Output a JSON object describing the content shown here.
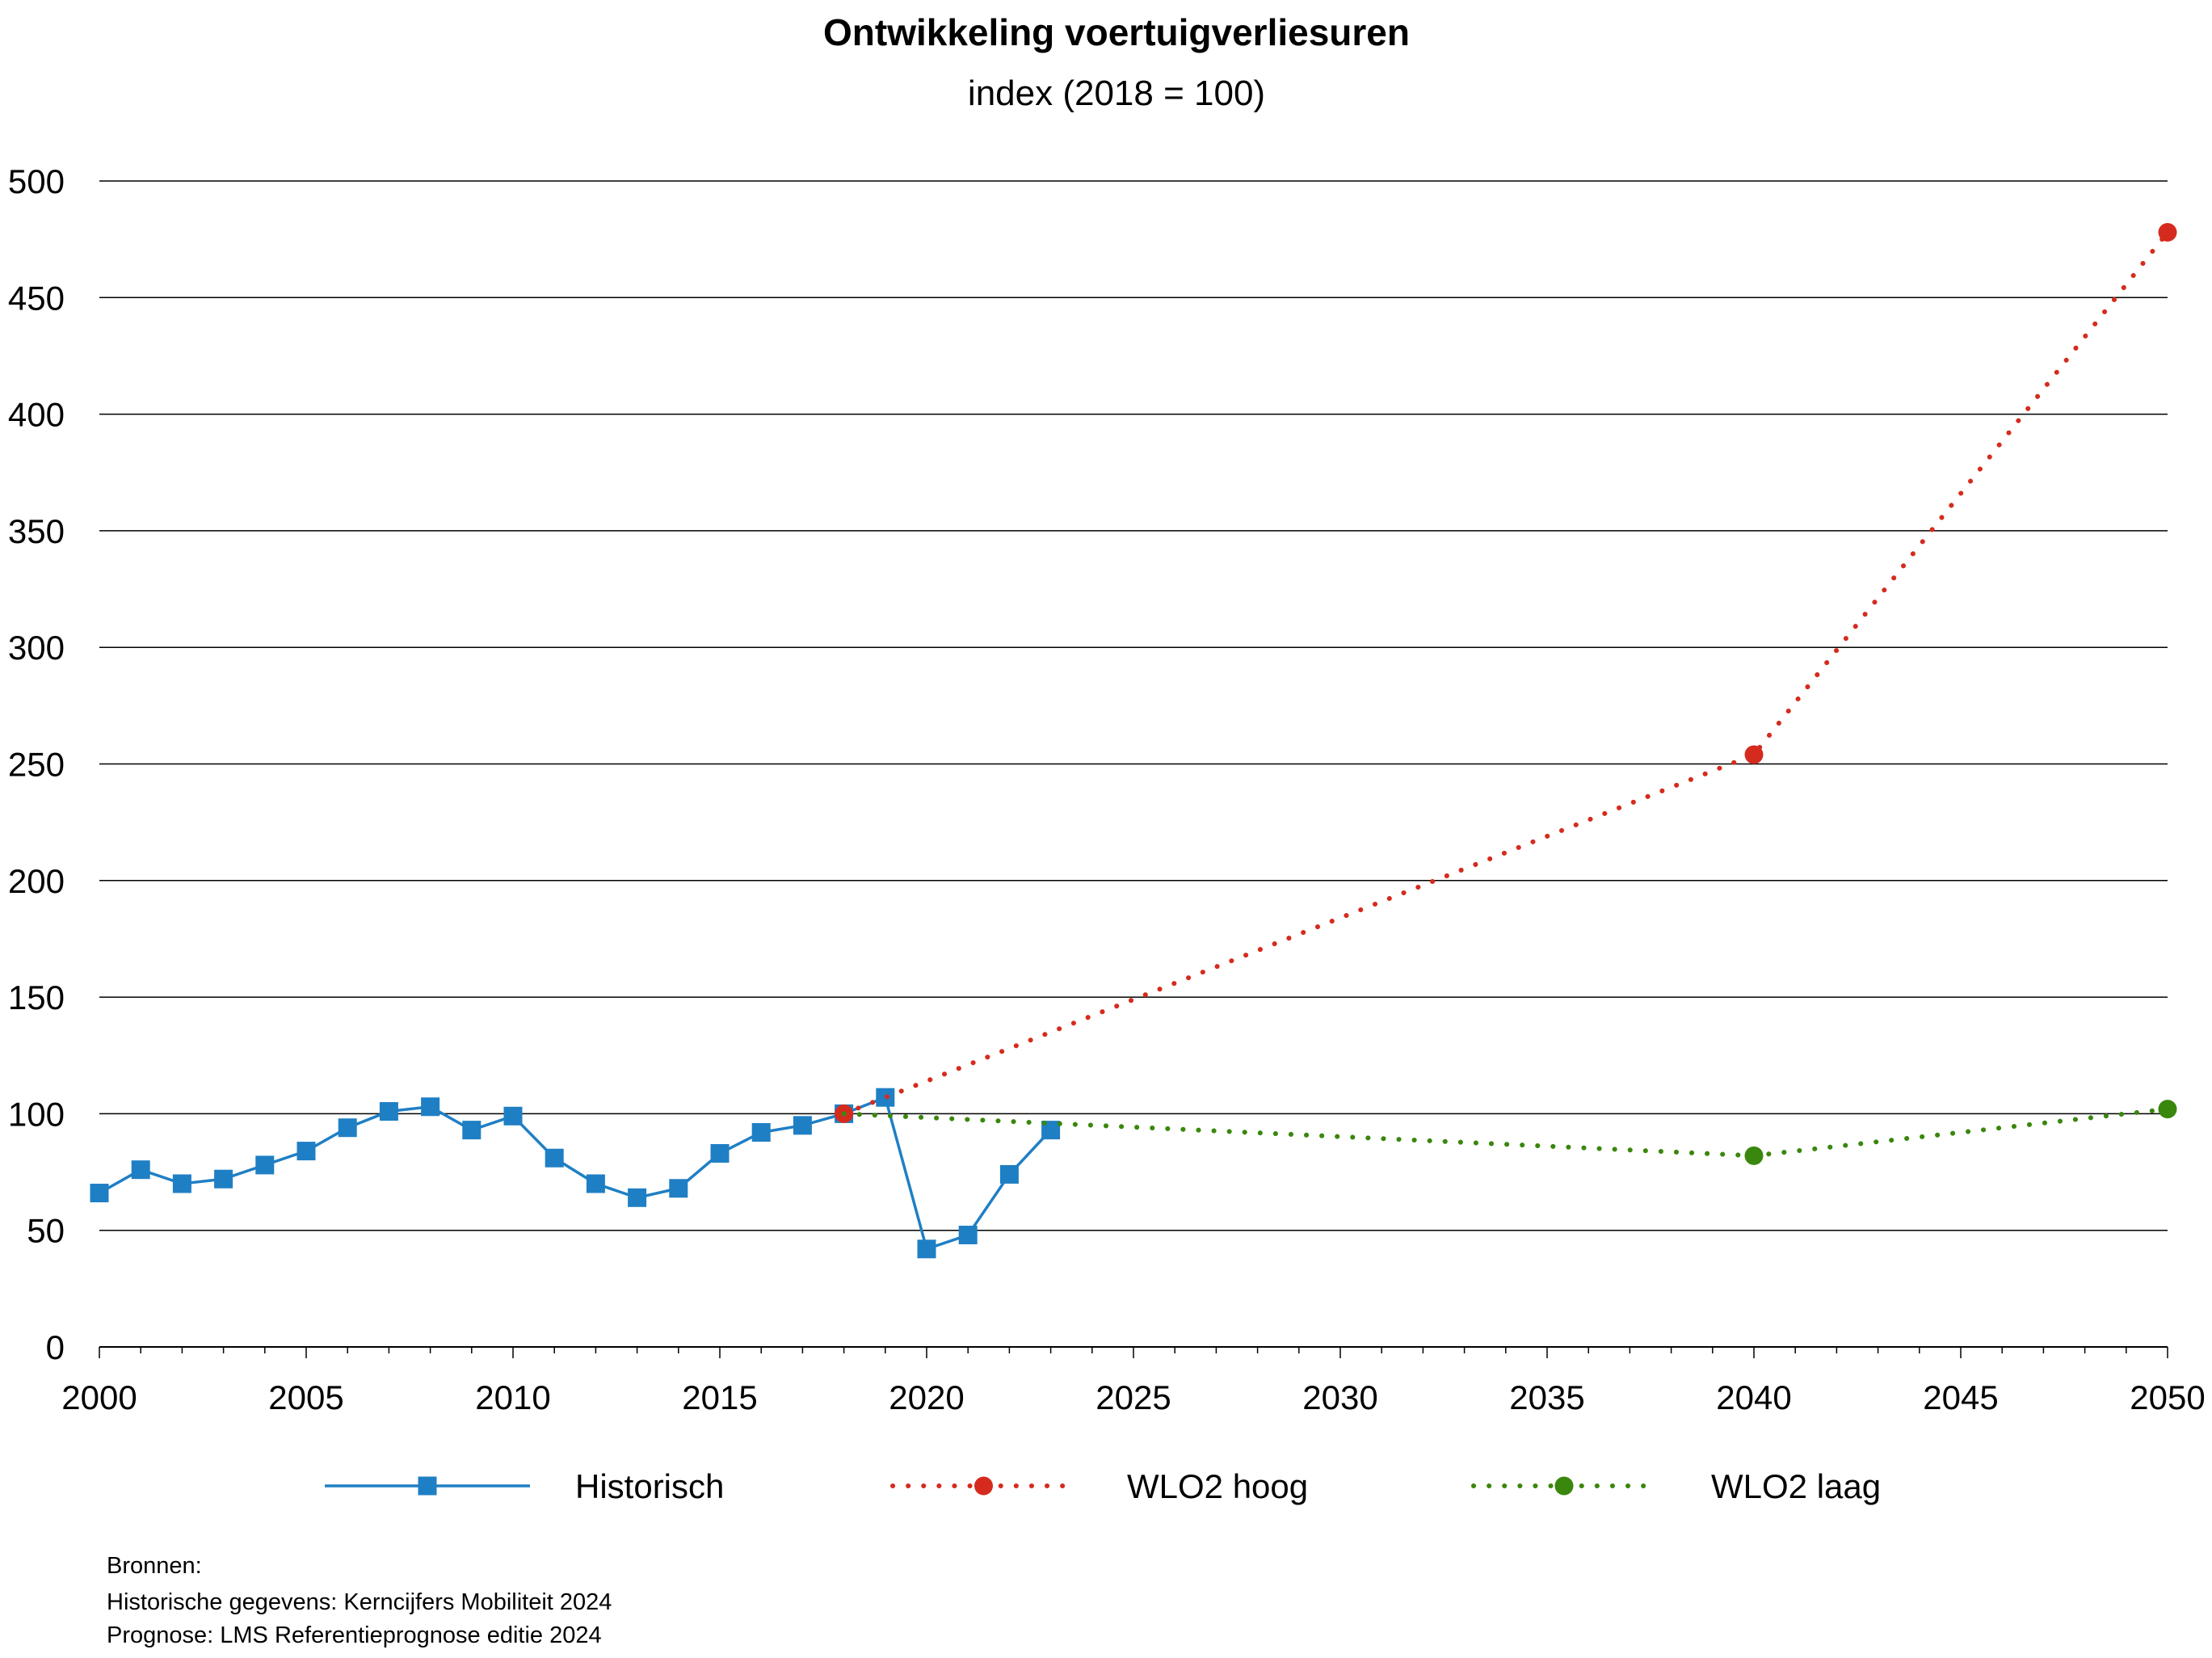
{
  "chart_data": {
    "type": "line",
    "title": "Ontwikkeling voertuigverliesuren",
    "subtitle": "index (2018 = 100)",
    "xlabel": "",
    "ylabel": "",
    "xlim": [
      2000,
      2050
    ],
    "ylim": [
      0,
      500
    ],
    "x_ticks": [
      2000,
      2005,
      2010,
      2015,
      2020,
      2025,
      2030,
      2035,
      2040,
      2045,
      2050
    ],
    "y_ticks": [
      0,
      50,
      100,
      150,
      200,
      250,
      300,
      350,
      400,
      450,
      500
    ],
    "grid": "horizontal",
    "legend_position": "bottom",
    "series": [
      {
        "name": "Historisch",
        "color": "#1f7fc4",
        "line_style": "solid",
        "marker": "square",
        "x": [
          2000,
          2001,
          2002,
          2003,
          2004,
          2005,
          2006,
          2007,
          2008,
          2009,
          2010,
          2011,
          2012,
          2013,
          2014,
          2015,
          2016,
          2017,
          2018,
          2019,
          2020,
          2021,
          2022,
          2023
        ],
        "y": [
          66,
          76,
          70,
          72,
          78,
          84,
          94,
          101,
          103,
          93,
          99,
          81,
          70,
          64,
          68,
          83,
          92,
          95,
          100,
          107,
          42,
          48,
          74,
          93
        ]
      },
      {
        "name": "WLO2 hoog",
        "color": "#d52b1e",
        "line_style": "dotted",
        "marker": "circle",
        "x": [
          2018,
          2040,
          2050
        ],
        "y": [
          100,
          254,
          478
        ]
      },
      {
        "name": "WLO2 laag",
        "color": "#39870c",
        "line_style": "dotted",
        "marker": "circle",
        "x": [
          2018,
          2040,
          2050
        ],
        "y": [
          100,
          82,
          102
        ]
      }
    ]
  },
  "sources": {
    "heading": "Bronnen:",
    "line1": "Historische gegevens: Kerncijfers Mobiliteit 2024",
    "line2": "Prognose: LMS Referentieprognose editie 2024"
  }
}
